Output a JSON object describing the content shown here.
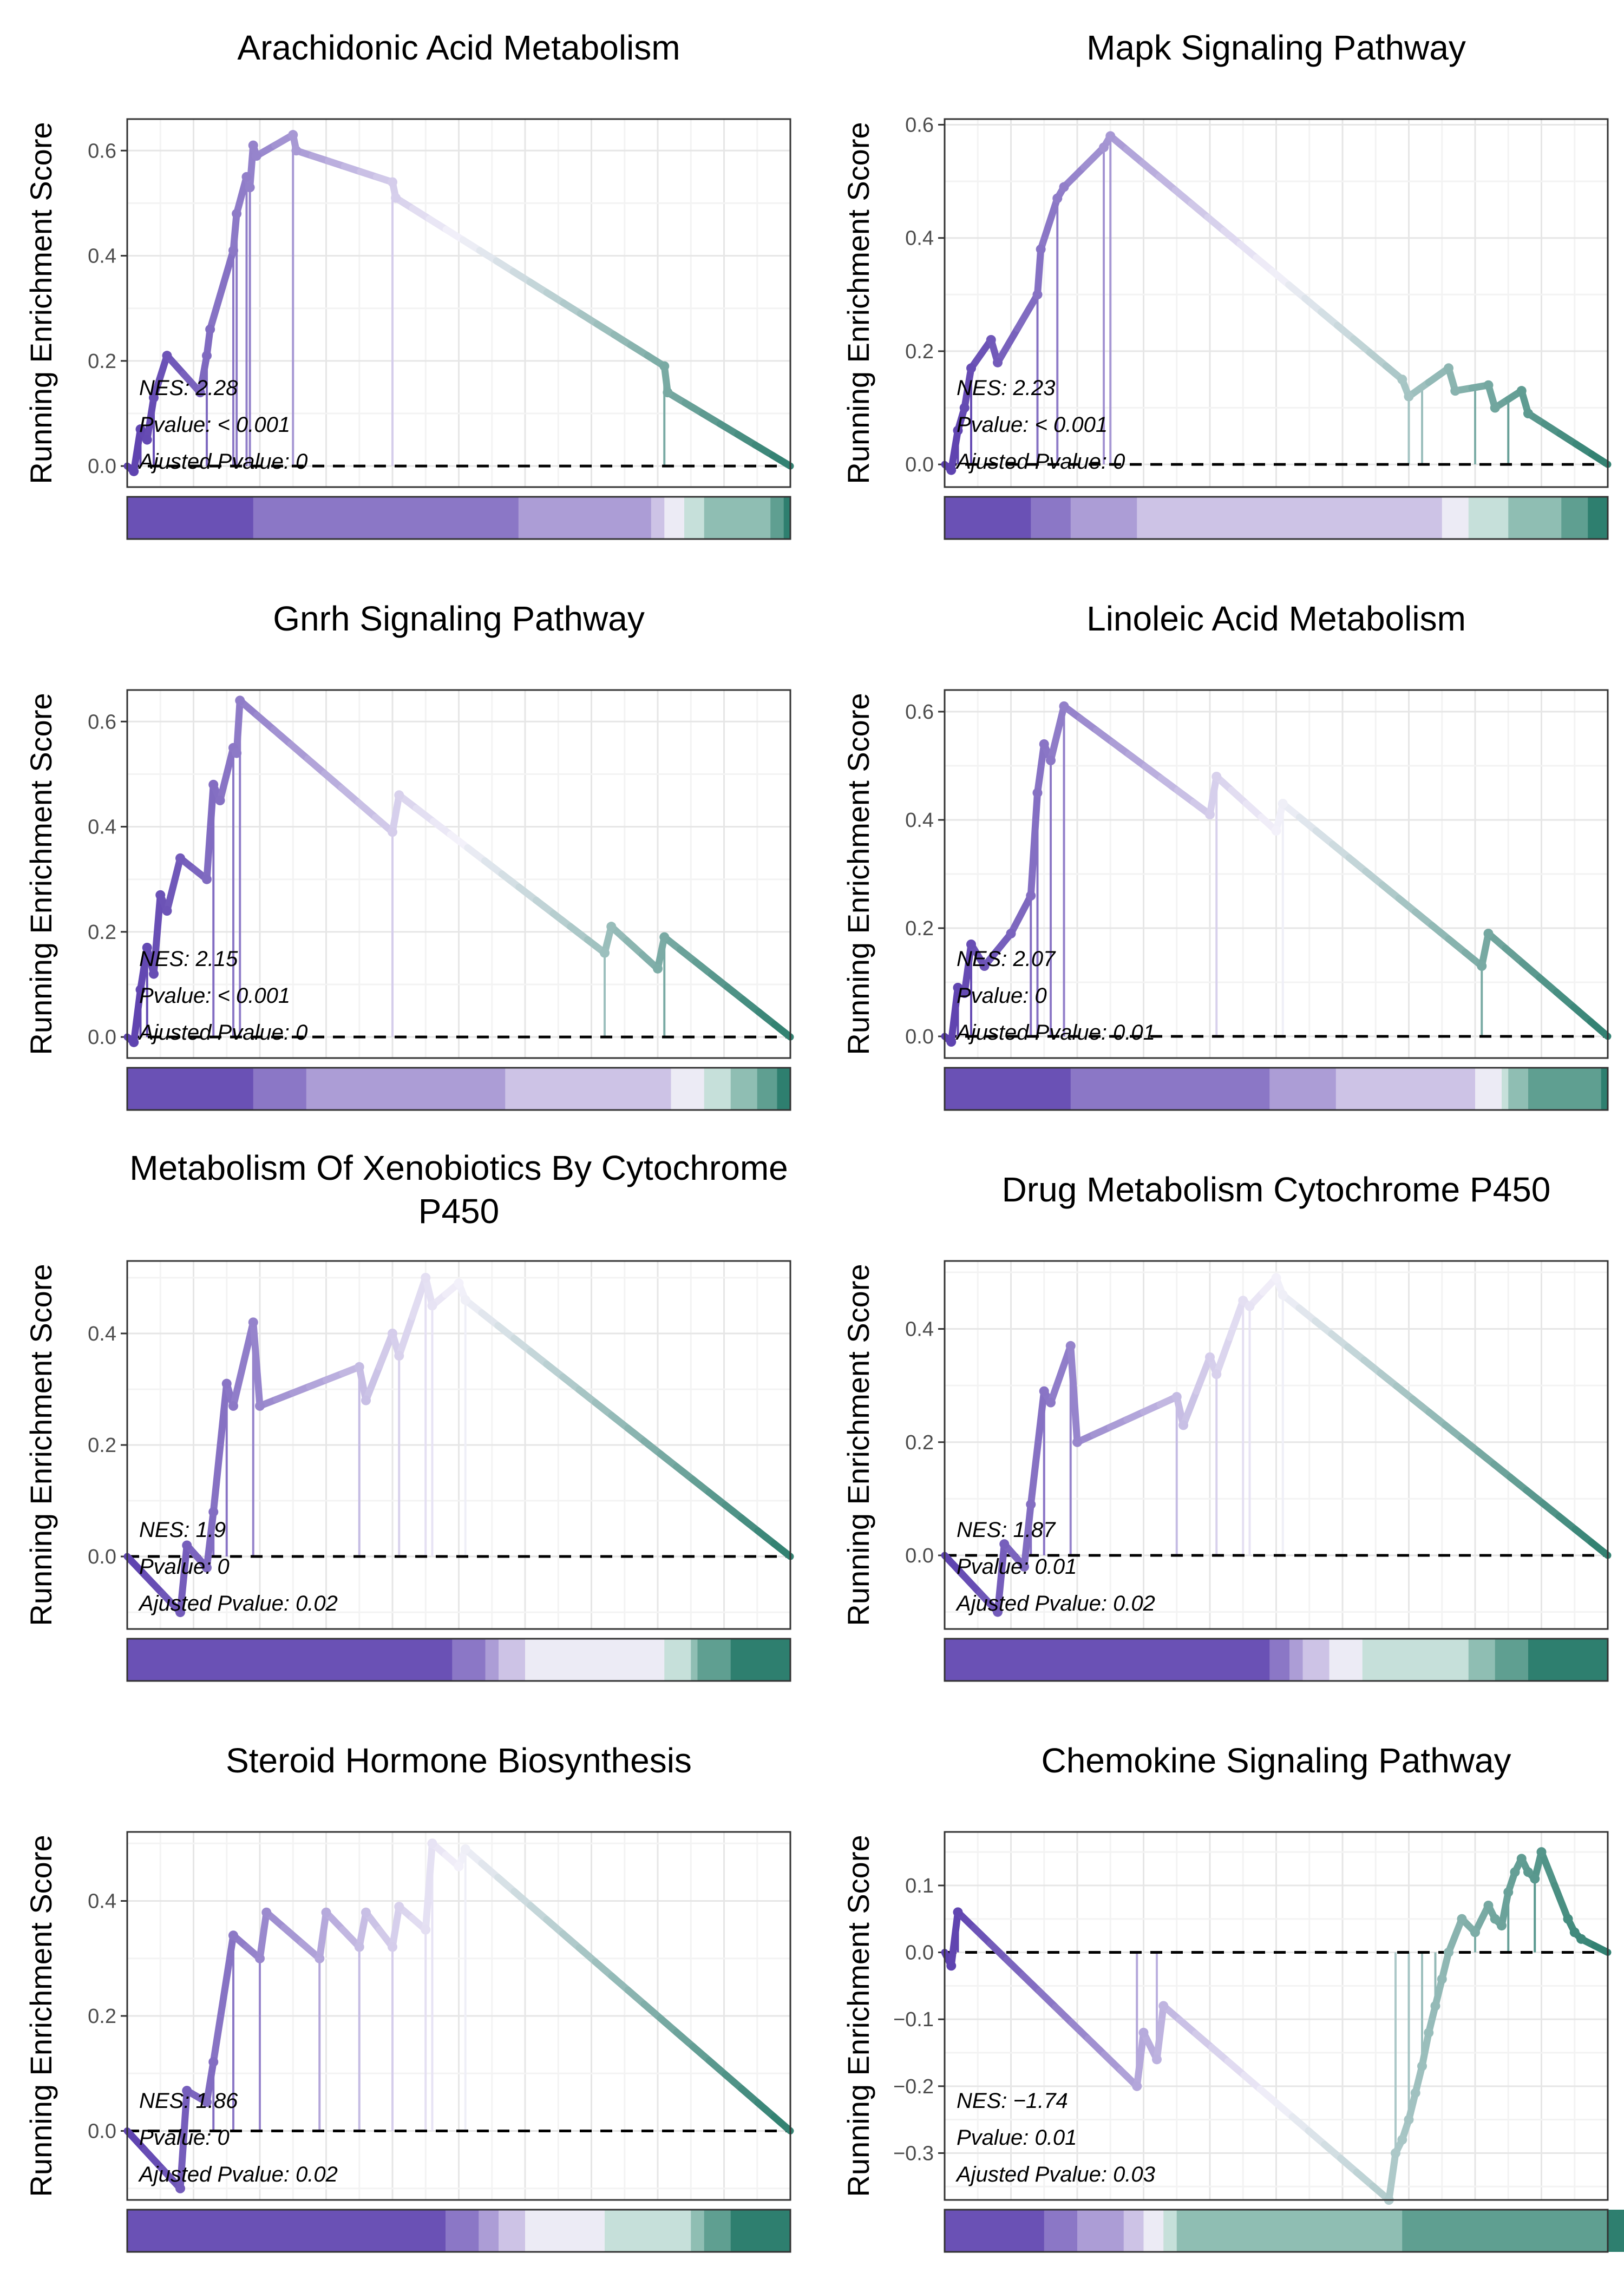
{
  "chart_data": [
    {
      "type": "line",
      "title": "Arachidonic Acid Metabolism",
      "ylabel": "Running Enrichment Score",
      "ylim": [
        -0.04,
        0.66
      ],
      "yticks": [
        0.0,
        0.2,
        0.4,
        0.6
      ],
      "x": [
        0,
        0.01,
        0.02,
        0.03,
        0.04,
        0.06,
        0.11,
        0.12,
        0.125,
        0.16,
        0.165,
        0.18,
        0.185,
        0.19,
        0.195,
        0.25,
        0.255,
        0.4,
        0.405,
        0.81,
        0.815,
        1
      ],
      "y": [
        0,
        -0.01,
        0.07,
        0.05,
        0.13,
        0.21,
        0.14,
        0.21,
        0.26,
        0.41,
        0.48,
        0.55,
        0.53,
        0.61,
        0.59,
        0.63,
        0.6,
        0.54,
        0.51,
        0.19,
        0.14,
        0
      ],
      "hits": [
        0.02,
        0.04,
        0.12,
        0.16,
        0.165,
        0.18,
        0.185,
        0.25,
        0.4,
        0.81
      ],
      "rank_bar": [
        "#6a51b5",
        "#8b77c6",
        "#ac9dd6",
        "#cdc3e6",
        "#ecebf5",
        "#c6e0da",
        "#8fbeb3",
        "#5f9f91",
        "#2e7f6f"
      ],
      "rank_bar_widths": [
        0.19,
        0.4,
        0.2,
        0.02,
        0.03,
        0.03,
        0.1,
        0.02,
        0.01
      ],
      "stats": {
        "nes": "NES: 2.28",
        "pvalue": "Pvalue: < 0.001",
        "adj": "Ajusted Pvalue: 0"
      }
    },
    {
      "type": "line",
      "title": "Mapk Signaling Pathway",
      "ylabel": "Running Enrichment Score",
      "ylim": [
        -0.04,
        0.61
      ],
      "yticks": [
        0.0,
        0.2,
        0.4,
        0.6
      ],
      "x": [
        0,
        0.01,
        0.02,
        0.03,
        0.04,
        0.07,
        0.08,
        0.14,
        0.145,
        0.17,
        0.18,
        0.24,
        0.25,
        0.69,
        0.7,
        0.76,
        0.77,
        0.82,
        0.83,
        0.87,
        0.88,
        1
      ],
      "y": [
        0,
        -0.01,
        0.06,
        0.1,
        0.17,
        0.22,
        0.18,
        0.3,
        0.38,
        0.47,
        0.49,
        0.56,
        0.58,
        0.15,
        0.12,
        0.17,
        0.13,
        0.14,
        0.1,
        0.13,
        0.09,
        0
      ],
      "hits": [
        0.02,
        0.04,
        0.14,
        0.17,
        0.24,
        0.25,
        0.7,
        0.72,
        0.8,
        0.85
      ],
      "rank_bar": [
        "#6a51b5",
        "#8b77c6",
        "#ac9dd6",
        "#cdc3e6",
        "#ecebf5",
        "#c6e0da",
        "#8fbeb3",
        "#5f9f91",
        "#2e7f6f"
      ],
      "rank_bar_widths": [
        0.13,
        0.06,
        0.1,
        0.46,
        0.04,
        0.06,
        0.08,
        0.04,
        0.03
      ],
      "stats": {
        "nes": "NES: 2.23",
        "pvalue": "Pvalue: < 0.001",
        "adj": "Ajusted Pvalue: 0"
      }
    },
    {
      "type": "line",
      "title": "Gnrh Signaling Pathway",
      "ylabel": "Running Enrichment Score",
      "ylim": [
        -0.04,
        0.66
      ],
      "yticks": [
        0.0,
        0.2,
        0.4,
        0.6
      ],
      "x": [
        0,
        0.01,
        0.02,
        0.03,
        0.04,
        0.05,
        0.06,
        0.08,
        0.12,
        0.13,
        0.14,
        0.16,
        0.165,
        0.17,
        0.4,
        0.41,
        0.72,
        0.73,
        0.8,
        0.81,
        1
      ],
      "y": [
        0,
        -0.01,
        0.09,
        0.17,
        0.12,
        0.27,
        0.24,
        0.34,
        0.3,
        0.48,
        0.45,
        0.55,
        0.54,
        0.64,
        0.39,
        0.46,
        0.16,
        0.21,
        0.13,
        0.19,
        0
      ],
      "hits": [
        0.02,
        0.03,
        0.13,
        0.16,
        0.17,
        0.4,
        0.72,
        0.81
      ],
      "rank_bar": [
        "#6a51b5",
        "#8b77c6",
        "#ac9dd6",
        "#cdc3e6",
        "#ecebf5",
        "#c6e0da",
        "#8fbeb3",
        "#5f9f91",
        "#2e7f6f"
      ],
      "rank_bar_widths": [
        0.19,
        0.08,
        0.3,
        0.25,
        0.05,
        0.04,
        0.04,
        0.03,
        0.02
      ],
      "stats": {
        "nes": "NES: 2.15",
        "pvalue": "Pvalue: < 0.001",
        "adj": "Ajusted Pvalue: 0"
      }
    },
    {
      "type": "line",
      "title": "Linoleic Acid Metabolism",
      "ylabel": "Running Enrichment Score",
      "ylim": [
        -0.04,
        0.64
      ],
      "yticks": [
        0.0,
        0.2,
        0.4,
        0.6
      ],
      "x": [
        0,
        0.01,
        0.02,
        0.03,
        0.04,
        0.06,
        0.1,
        0.13,
        0.14,
        0.15,
        0.16,
        0.18,
        0.4,
        0.41,
        0.5,
        0.51,
        0.81,
        0.82,
        1
      ],
      "y": [
        0,
        -0.01,
        0.09,
        0.08,
        0.17,
        0.13,
        0.19,
        0.26,
        0.45,
        0.54,
        0.51,
        0.61,
        0.41,
        0.48,
        0.38,
        0.43,
        0.13,
        0.19,
        0
      ],
      "hits": [
        0.02,
        0.04,
        0.13,
        0.14,
        0.16,
        0.18,
        0.41,
        0.51,
        0.81
      ],
      "rank_bar": [
        "#6a51b5",
        "#8b77c6",
        "#ac9dd6",
        "#cdc3e6",
        "#ecebf5",
        "#c6e0da",
        "#8fbeb3",
        "#5f9f91",
        "#2e7f6f"
      ],
      "rank_bar_widths": [
        0.19,
        0.3,
        0.1,
        0.21,
        0.04,
        0.01,
        0.03,
        0.11,
        0.01
      ],
      "stats": {
        "nes": "NES: 2.07",
        "pvalue": "Pvalue: 0",
        "adj": "Ajusted Pvalue: 0.01"
      }
    },
    {
      "type": "line",
      "title": "Metabolism Of Xenobiotics By Cytochrome P450",
      "ylabel": "Running Enrichment Score",
      "ylim": [
        -0.13,
        0.53
      ],
      "yticks": [
        0.0,
        0.2,
        0.4
      ],
      "x": [
        0,
        0.08,
        0.09,
        0.12,
        0.13,
        0.15,
        0.16,
        0.19,
        0.2,
        0.35,
        0.36,
        0.4,
        0.41,
        0.45,
        0.46,
        0.5,
        0.51,
        1
      ],
      "y": [
        0,
        -0.1,
        0.02,
        -0.02,
        0.08,
        0.31,
        0.27,
        0.42,
        0.27,
        0.34,
        0.28,
        0.4,
        0.36,
        0.5,
        0.45,
        0.49,
        0.46,
        0
      ],
      "hits": [
        0.13,
        0.15,
        0.19,
        0.35,
        0.41,
        0.45,
        0.46,
        0.51
      ],
      "rank_bar": [
        "#6a51b5",
        "#8b77c6",
        "#ac9dd6",
        "#cdc3e6",
        "#ecebf5",
        "#c6e0da",
        "#8fbeb3",
        "#5f9f91",
        "#2e7f6f"
      ],
      "rank_bar_widths": [
        0.49,
        0.05,
        0.02,
        0.04,
        0.21,
        0.04,
        0.01,
        0.05,
        0.09
      ],
      "stats": {
        "nes": "NES: 1.9",
        "pvalue": "Pvalue: 0",
        "adj": "Ajusted Pvalue: 0.02"
      }
    },
    {
      "type": "line",
      "title": "Drug Metabolism Cytochrome P450",
      "ylabel": "Running Enrichment Score",
      "ylim": [
        -0.13,
        0.52
      ],
      "yticks": [
        0.0,
        0.2,
        0.4
      ],
      "x": [
        0,
        0.08,
        0.09,
        0.12,
        0.13,
        0.15,
        0.16,
        0.19,
        0.2,
        0.35,
        0.36,
        0.4,
        0.41,
        0.45,
        0.46,
        0.5,
        0.51,
        1
      ],
      "y": [
        0,
        -0.1,
        0.02,
        -0.02,
        0.09,
        0.29,
        0.27,
        0.37,
        0.2,
        0.28,
        0.23,
        0.35,
        0.32,
        0.45,
        0.44,
        0.49,
        0.46,
        0
      ],
      "hits": [
        0.13,
        0.15,
        0.19,
        0.35,
        0.41,
        0.45,
        0.46,
        0.51
      ],
      "rank_bar": [
        "#6a51b5",
        "#8b77c6",
        "#ac9dd6",
        "#cdc3e6",
        "#ecebf5",
        "#c6e0da",
        "#8fbeb3",
        "#5f9f91",
        "#2e7f6f"
      ],
      "rank_bar_widths": [
        0.49,
        0.03,
        0.02,
        0.04,
        0.05,
        0.16,
        0.04,
        0.05,
        0.12
      ],
      "stats": {
        "nes": "NES: 1.87",
        "pvalue": "Pvalue: 0.01",
        "adj": "Ajusted Pvalue: 0.02"
      }
    },
    {
      "type": "line",
      "title": "Steroid Hormone Biosynthesis",
      "ylabel": "Running Enrichment Score",
      "ylim": [
        -0.12,
        0.52
      ],
      "yticks": [
        0.0,
        0.2,
        0.4
      ],
      "x": [
        0,
        0.08,
        0.09,
        0.12,
        0.13,
        0.16,
        0.2,
        0.21,
        0.29,
        0.3,
        0.35,
        0.36,
        0.4,
        0.41,
        0.45,
        0.46,
        0.5,
        0.51,
        1
      ],
      "y": [
        0,
        -0.1,
        0.07,
        0.05,
        0.12,
        0.34,
        0.3,
        0.38,
        0.3,
        0.38,
        0.32,
        0.38,
        0.32,
        0.39,
        0.35,
        0.5,
        0.46,
        0.49,
        0
      ],
      "hits": [
        0.13,
        0.16,
        0.2,
        0.29,
        0.35,
        0.4,
        0.45,
        0.46,
        0.51
      ],
      "rank_bar": [
        "#6a51b5",
        "#8b77c6",
        "#ac9dd6",
        "#cdc3e6",
        "#ecebf5",
        "#c6e0da",
        "#8fbeb3",
        "#5f9f91",
        "#2e7f6f"
      ],
      "rank_bar_widths": [
        0.48,
        0.05,
        0.03,
        0.04,
        0.12,
        0.13,
        0.02,
        0.04,
        0.09
      ],
      "stats": {
        "nes": "NES: 1.86",
        "pvalue": "Pvalue: 0",
        "adj": "Ajusted Pvalue: 0.02"
      }
    },
    {
      "type": "line",
      "title": "Chemokine Signaling Pathway",
      "ylabel": "Running Enrichment Score",
      "ylim": [
        -0.37,
        0.18
      ],
      "yticks": [
        -0.3,
        -0.2,
        -0.1,
        0.0,
        0.1
      ],
      "x": [
        0,
        0.01,
        0.02,
        0.29,
        0.3,
        0.32,
        0.33,
        0.67,
        0.68,
        0.69,
        0.7,
        0.71,
        0.72,
        0.73,
        0.74,
        0.75,
        0.76,
        0.78,
        0.8,
        0.82,
        0.83,
        0.84,
        0.85,
        0.86,
        0.87,
        0.88,
        0.89,
        0.9,
        0.94,
        0.95,
        0.96,
        1
      ],
      "y": [
        0,
        -0.02,
        0.06,
        -0.2,
        -0.12,
        -0.16,
        -0.08,
        -0.37,
        -0.3,
        -0.28,
        -0.25,
        -0.21,
        -0.17,
        -0.12,
        -0.08,
        -0.04,
        0.0,
        0.05,
        0.03,
        0.07,
        0.05,
        0.04,
        0.09,
        0.12,
        0.14,
        0.12,
        0.11,
        0.15,
        0.05,
        0.03,
        0.02,
        0
      ],
      "hits": [
        0.02,
        0.29,
        0.32,
        0.68,
        0.7,
        0.72,
        0.74,
        0.76,
        0.8,
        0.85,
        0.89
      ],
      "rank_bar": [
        "#6a51b5",
        "#8b77c6",
        "#ac9dd6",
        "#cdc3e6",
        "#ecebf5",
        "#c6e0da",
        "#8fbeb3",
        "#5f9f91",
        "#2e7f6f"
      ],
      "rank_bar_widths": [
        0.15,
        0.05,
        0.07,
        0.03,
        0.03,
        0.02,
        0.34,
        0.31,
        0.03
      ],
      "stats": {
        "nes": "NES: −1.74",
        "pvalue": "Pvalue: 0.01",
        "adj": "Ajusted Pvalue: 0.03"
      }
    }
  ]
}
